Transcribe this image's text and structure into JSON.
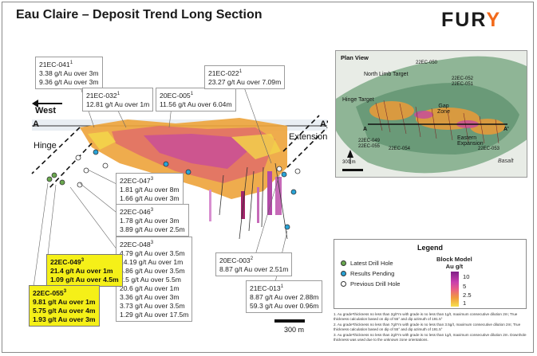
{
  "title": "Eau Claire – Deposit Trend Long Section",
  "logo": {
    "main": "FUR",
    "accent": "Y"
  },
  "section_labels": {
    "west": "West",
    "a": "A",
    "a_prime": "A'",
    "hinge": "Hinge",
    "extension": "Extension"
  },
  "callouts": [
    {
      "id": "21EC-041",
      "sup": "1",
      "lines": [
        "3.38 g/t Au over 3m",
        "9.36 g/t Au over 3m"
      ],
      "highlight": false
    },
    {
      "id": "21EC-032",
      "sup": "1",
      "lines": [
        "12.81 g/t Au over 1m"
      ],
      "highlight": false
    },
    {
      "id": "20EC-005",
      "sup": "1",
      "lines": [
        "11.56 g/t Au over 6.04m"
      ],
      "highlight": false
    },
    {
      "id": "21EC-022",
      "sup": "1",
      "lines": [
        "23.27 g/t Au over 7.09m"
      ],
      "highlight": false
    },
    {
      "id": "22EC-047",
      "sup": "3",
      "lines": [
        "1.81 g/t Au over 8m",
        "1.66 g/t Au over 3m"
      ],
      "highlight": false
    },
    {
      "id": "22EC-046",
      "sup": "3",
      "lines": [
        "1.78 g/t Au over 3m",
        "3.89 g/t Au over 2.5m"
      ],
      "highlight": false
    },
    {
      "id": "22EC-048",
      "sup": "3",
      "lines": [
        "4.79 g/t Au over 3.5m",
        "14.19 g/t Au over 1m",
        "5.86 g/t Au over 3.5m",
        "2.5 g/t Au over 5.5m",
        "20.6 g/t Au over 1m",
        "3.36 g/t Au over 3m",
        "3.73 g/t Au over 3.5m",
        "1.29 g/t Au over 17.5m"
      ],
      "highlight": false
    },
    {
      "id": "22EC-049",
      "sup": "3",
      "lines": [
        "21.4 g/t Au over 1m",
        "1.09 g/t Au over 4.5m"
      ],
      "highlight": true
    },
    {
      "id": "22EC-055",
      "sup": "3",
      "lines": [
        "9.81 g/t Au over 1m",
        "5.75 g/t Au over 4m",
        "1.93 g/t Au over 3m"
      ],
      "highlight": true
    },
    {
      "id": "20EC-003",
      "sup": "2",
      "lines": [
        "8.87 g/t Au over 2.51m"
      ],
      "highlight": false
    },
    {
      "id": "21EC-013",
      "sup": "1",
      "lines": [
        "8.87 g/t Au over 2.88m",
        "59.3 g/t Au over 0.96m"
      ],
      "highlight": false
    }
  ],
  "plan_view": {
    "title": "Plan View",
    "labels": [
      "North Limb Target",
      "Hinge Target",
      "Gap Zone",
      "Eastern Expansion",
      "Basalt",
      "22EC-050",
      "22EC-052",
      "22EC-051",
      "22EC-049",
      "22EC-055",
      "22EC-054",
      "22EC-053",
      "A",
      "A'"
    ],
    "scale": "300 m"
  },
  "legend": {
    "title": "Legend",
    "items": [
      {
        "label": "Latest Drill Hole",
        "color": "#6aa84f"
      },
      {
        "label": "Results Pending",
        "color": "#29a3d6"
      },
      {
        "label": "Previous Drill Hole",
        "color": "#ffffff"
      }
    ],
    "block_model_title": "Block Model",
    "block_model_unit": "Au g/t",
    "scale_values": [
      "10",
      "5",
      "2.5",
      "1"
    ]
  },
  "scale_bar": "300 m",
  "notes": [
    "1. Au grade*thickness no less than 2g/t*m with grade is no less than 1g/t, maximum consecutive dilution 2m; True thickness calculation based on dip of 55° and dip azimuth of 191.5°",
    "2. Au grade*thickness no less than 7g/t*m with grade is no less than 3.5g/t, maximum consecutive dilution 2m; True thickness calculation based on dip of 55° and dip azimuth of 191.5°",
    "3. Au grade*thickness no less than 2g/t*m with grade is no less than 1g/t, maximum consecutive dilution 2m. Downhole thickness was used due to the unknown zone orientations."
  ]
}
